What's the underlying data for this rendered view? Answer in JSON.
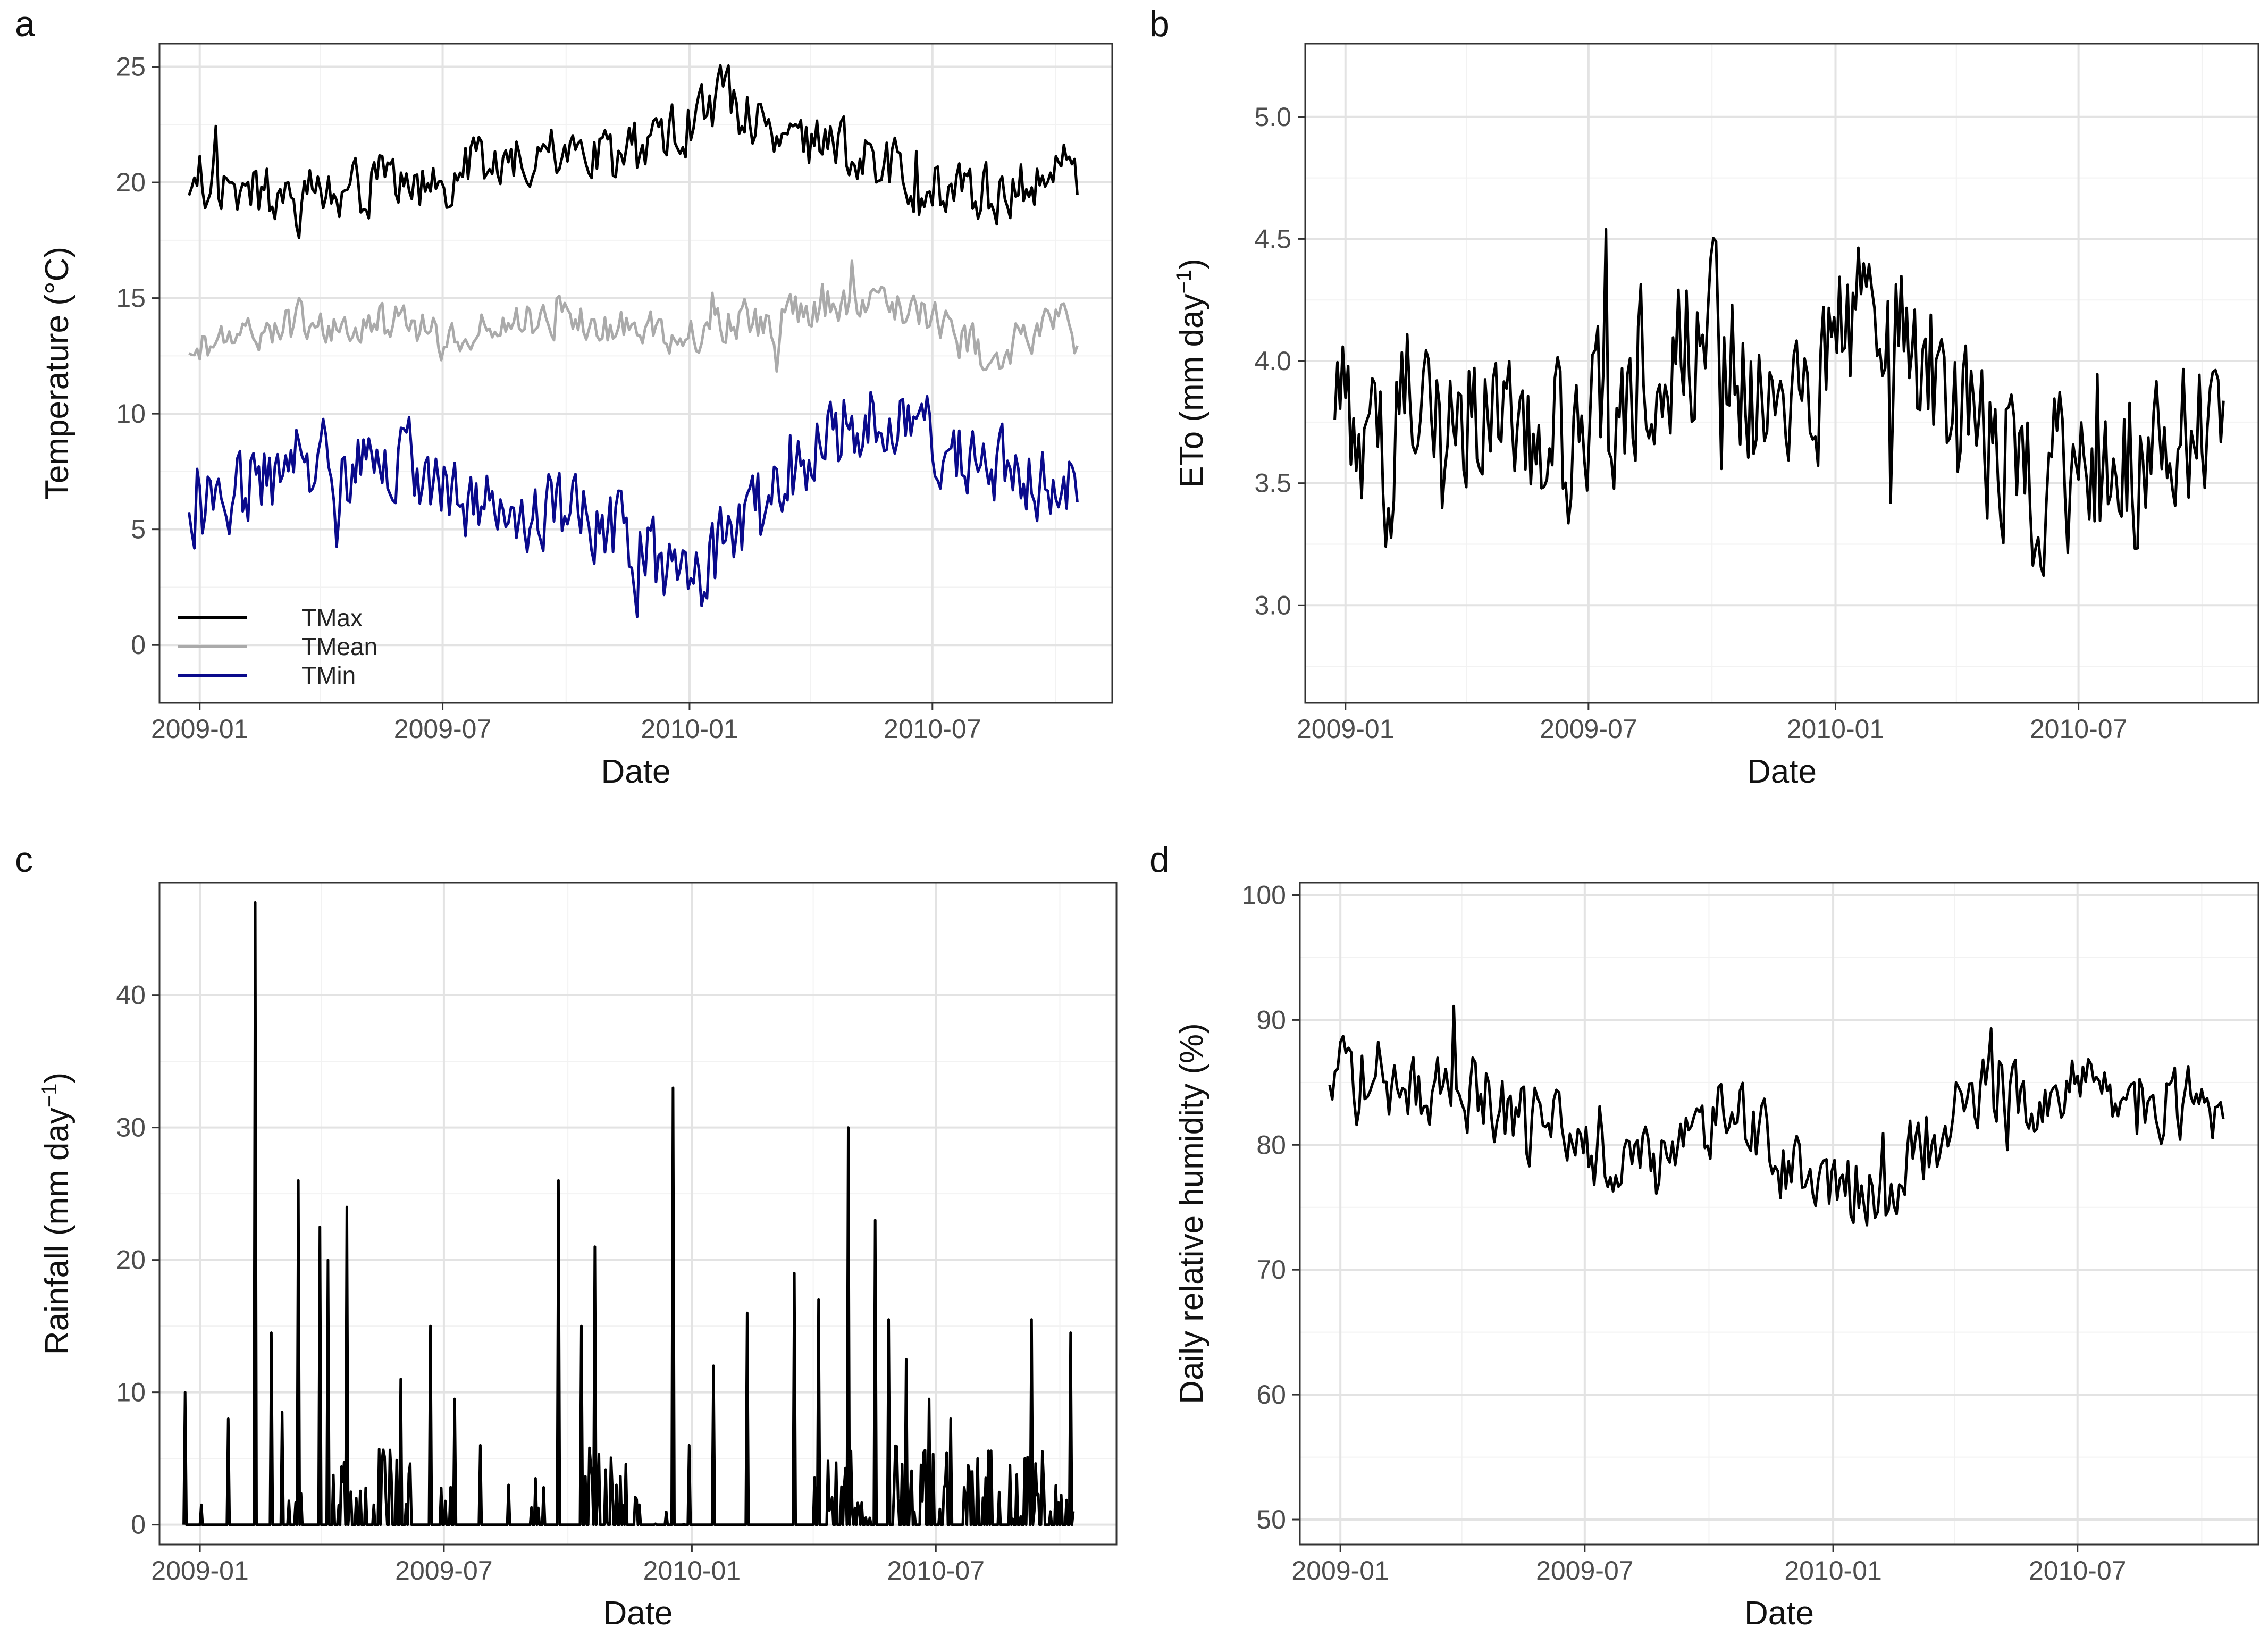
{
  "figure": {
    "panels_note": "Four time-series panels of daily weather variables, Dec 2008 to Nov 2010",
    "x_tick_labels": [
      "2009-01",
      "2009-07",
      "2010-01",
      "2010-07"
    ]
  },
  "chart_data": [
    {
      "id": "a",
      "panel_label": "a",
      "type": "line",
      "title": "",
      "xlabel": "Date",
      "ylabel": "Temperature (°C)",
      "ylim": [
        -2.5,
        26
      ],
      "yticks": [
        0,
        5,
        10,
        15,
        20,
        25
      ],
      "xlim": [
        -30,
        680
      ],
      "x_unit": "days since 2009-01-01",
      "legend": {
        "position": "bottom-left",
        "entries": [
          "TMax",
          "TMean",
          "TMin"
        ]
      },
      "series": [
        {
          "name": "TMax",
          "color": "#000000",
          "x": [
            -8,
            0,
            15,
            30,
            45,
            60,
            75,
            90,
            105,
            120,
            135,
            150,
            165,
            181,
            195,
            210,
            225,
            240,
            255,
            270,
            285,
            300,
            315,
            330,
            345,
            365,
            380,
            395,
            410,
            425,
            440,
            455,
            470,
            485,
            500,
            515,
            530,
            546,
            560,
            575,
            590,
            605,
            620,
            635,
            645,
            655
          ],
          "values": [
            20.0,
            19.5,
            20.0,
            19.5,
            19.5,
            19.0,
            19.0,
            19.5,
            19.5,
            19.5,
            20.0,
            20.5,
            20.0,
            20.0,
            20.5,
            20.5,
            20.5,
            21.0,
            21.0,
            21.0,
            21.0,
            21.0,
            21.0,
            21.5,
            22.0,
            22.5,
            23.5,
            23.5,
            23.0,
            22.5,
            22.0,
            21.5,
            21.5,
            21.0,
            21.0,
            20.5,
            20.0,
            20.0,
            19.5,
            19.5,
            19.5,
            19.5,
            20.0,
            20.0,
            20.5,
            20.0
          ]
        },
        {
          "name": "TMean",
          "color": "#aaaaaa",
          "x": [
            -8,
            0,
            15,
            30,
            45,
            60,
            75,
            90,
            105,
            120,
            135,
            150,
            165,
            181,
            195,
            210,
            225,
            240,
            255,
            270,
            285,
            300,
            315,
            330,
            345,
            365,
            380,
            395,
            410,
            425,
            440,
            455,
            470,
            485,
            500,
            515,
            530,
            546,
            560,
            575,
            590,
            605,
            620,
            635,
            645,
            655
          ],
          "values": [
            13.0,
            12.8,
            13.0,
            13.5,
            13.5,
            13.8,
            14.0,
            14.0,
            13.8,
            13.8,
            14.0,
            14.0,
            13.5,
            13.3,
            13.5,
            13.8,
            14.0,
            14.0,
            14.0,
            14.0,
            13.8,
            13.5,
            13.5,
            13.5,
            13.3,
            13.3,
            13.8,
            14.0,
            14.0,
            14.0,
            14.3,
            14.5,
            14.8,
            15.0,
            15.0,
            14.8,
            14.5,
            14.0,
            13.5,
            13.0,
            12.5,
            13.0,
            13.5,
            13.5,
            14.0,
            13.0
          ]
        },
        {
          "name": "TMin",
          "color": "#0a0a8c",
          "x": [
            -8,
            0,
            15,
            30,
            45,
            60,
            75,
            90,
            105,
            120,
            135,
            150,
            165,
            181,
            195,
            210,
            225,
            240,
            255,
            270,
            285,
            300,
            315,
            330,
            345,
            365,
            380,
            395,
            410,
            425,
            440,
            455,
            470,
            485,
            500,
            515,
            530,
            546,
            560,
            575,
            590,
            605,
            620,
            635,
            645,
            655
          ],
          "values": [
            6.5,
            6.0,
            6.0,
            6.5,
            7.5,
            8.0,
            8.5,
            8.0,
            7.5,
            7.5,
            8.0,
            8.0,
            7.5,
            7.0,
            6.5,
            6.5,
            6.5,
            6.0,
            6.0,
            5.5,
            5.5,
            5.0,
            4.5,
            4.0,
            3.5,
            2.0,
            3.5,
            4.5,
            5.5,
            6.0,
            7.5,
            8.5,
            9.0,
            9.5,
            10.0,
            9.5,
            9.0,
            9.0,
            8.5,
            8.0,
            7.0,
            7.5,
            7.5,
            7.0,
            7.5,
            6.0
          ]
        }
      ]
    },
    {
      "id": "b",
      "panel_label": "b",
      "type": "line",
      "title": "",
      "xlabel": "Date",
      "ylabel": "ETo  (mm day",
      "ylabel_superscript": "−1",
      "ylabel_suffix": ")",
      "ylim": [
        2.6,
        5.3
      ],
      "yticks": [
        3.0,
        3.5,
        4.0,
        4.5,
        5.0
      ],
      "ytick_labels": [
        "3.0",
        "3.5",
        "4.0",
        "4.5",
        "5.0"
      ],
      "xlim": [
        -30,
        680
      ],
      "x_unit": "days since 2009-01-01",
      "series": [
        {
          "name": "ETo",
          "color": "#000000",
          "x": [
            -8,
            0,
            15,
            30,
            45,
            60,
            75,
            90,
            105,
            120,
            135,
            150,
            165,
            181,
            195,
            210,
            225,
            240,
            255,
            270,
            285,
            300,
            315,
            330,
            345,
            365,
            380,
            395,
            410,
            425,
            440,
            455,
            470,
            485,
            500,
            515,
            530,
            546,
            560,
            575,
            590,
            605,
            620,
            635,
            645,
            655
          ],
          "values": [
            3.9,
            3.8,
            3.6,
            3.6,
            3.8,
            4.0,
            3.9,
            3.8,
            3.7,
            3.7,
            3.6,
            3.6,
            3.7,
            3.7,
            3.8,
            3.9,
            4.0,
            4.1,
            4.1,
            4.1,
            4.0,
            3.9,
            3.9,
            3.8,
            3.9,
            4.1,
            4.2,
            4.2,
            4.1,
            4.0,
            3.9,
            3.8,
            3.7,
            3.7,
            3.6,
            3.5,
            3.5,
            3.6,
            3.6,
            3.6,
            3.6,
            3.7,
            3.7,
            3.7,
            3.7,
            3.6
          ]
        }
      ]
    },
    {
      "id": "c",
      "panel_label": "c",
      "type": "line",
      "title": "",
      "xlabel": "Date",
      "ylabel": "Rainfall  (mm day",
      "ylabel_superscript": "−1",
      "ylabel_suffix": ")",
      "ylim": [
        -1.5,
        48.5
      ],
      "yticks": [
        0,
        10,
        20,
        30,
        40
      ],
      "xlim": [
        -30,
        680
      ],
      "x_unit": "days since 2009-01-01",
      "series": [
        {
          "name": "Rainfall",
          "color": "#000000",
          "x": [
            -12,
            -11,
            -10,
            -9,
            -8,
            0,
            1,
            2,
            20,
            21,
            22,
            40,
            41,
            42,
            52,
            53,
            54,
            60,
            61,
            62,
            72,
            73,
            74,
            88,
            89,
            90,
            94,
            95,
            96,
            108,
            109,
            110,
            115,
            116,
            117,
            128,
            129,
            130,
            148,
            149,
            150,
            170,
            171,
            172,
            188,
            189,
            190,
            207,
            208,
            209,
            228,
            229,
            230,
            248,
            249,
            250,
            265,
            266,
            267,
            282,
            283,
            284,
            292,
            293,
            294,
            308,
            309,
            310,
            325,
            326,
            327,
            350,
            351,
            352,
            362,
            363,
            364,
            380,
            381,
            382,
            405,
            406,
            407,
            440,
            441,
            442,
            458,
            459,
            460,
            480,
            481,
            482,
            500,
            501,
            502,
            510,
            511,
            512,
            523,
            524,
            525,
            540,
            541,
            542,
            556,
            557,
            558,
            576,
            577,
            578,
            600,
            601,
            602,
            616,
            617,
            618,
            630,
            631,
            632,
            645,
            646,
            647
          ],
          "values": [
            0,
            10,
            0,
            0,
            0,
            0,
            1.5,
            0,
            0,
            8,
            0,
            0,
            47,
            0,
            0,
            14.5,
            0,
            0,
            8.5,
            0,
            0,
            26,
            0,
            0,
            22.5,
            0,
            0,
            20,
            0,
            0,
            24,
            0,
            0,
            2,
            0,
            0,
            1.5,
            0,
            0,
            11,
            0,
            0,
            15,
            0,
            0,
            9.5,
            0,
            0,
            6,
            0,
            0,
            3,
            0,
            0,
            3.5,
            0,
            0,
            26,
            0,
            0,
            15,
            0,
            0,
            21,
            0,
            0,
            3,
            0,
            0,
            1.5,
            0,
            0,
            33,
            0,
            0,
            6,
            0,
            0,
            12,
            0,
            0,
            16,
            0,
            0,
            19,
            0,
            0,
            17,
            0,
            0,
            30,
            0,
            0,
            23,
            0,
            0,
            15.5,
            0,
            0,
            12.5,
            0,
            0,
            9.5,
            0,
            0,
            8,
            0,
            0,
            5,
            0,
            0,
            4.5,
            0,
            0,
            15.5,
            0,
            0,
            1,
            0,
            0,
            14.5,
            0
          ]
        }
      ]
    },
    {
      "id": "d",
      "panel_label": "d",
      "type": "line",
      "title": "",
      "xlabel": "Date",
      "ylabel": "Daily relative humidity  (%)",
      "ylim": [
        48,
        101
      ],
      "yticks": [
        50,
        60,
        70,
        80,
        90,
        100
      ],
      "xlim": [
        -30,
        680
      ],
      "x_unit": "days since 2009-01-01",
      "series": [
        {
          "name": "Daily relative humidity",
          "color": "#000000",
          "x": [
            -8,
            0,
            15,
            30,
            45,
            60,
            75,
            90,
            105,
            120,
            135,
            150,
            165,
            181,
            195,
            210,
            225,
            240,
            255,
            270,
            285,
            300,
            315,
            330,
            345,
            365,
            380,
            395,
            410,
            425,
            440,
            455,
            470,
            485,
            500,
            515,
            530,
            546,
            560,
            575,
            590,
            605,
            620,
            635,
            645,
            655
          ],
          "values": [
            86,
            85,
            85,
            86,
            85,
            84,
            84,
            83,
            84,
            83,
            82,
            82,
            81,
            80,
            79,
            78,
            78,
            79,
            80,
            81,
            82,
            81,
            80,
            79,
            77,
            75,
            76,
            77,
            78,
            79,
            81,
            83,
            85,
            85,
            85,
            84,
            84,
            84,
            83,
            83,
            83,
            84,
            84,
            84,
            82,
            80
          ]
        }
      ]
    }
  ]
}
